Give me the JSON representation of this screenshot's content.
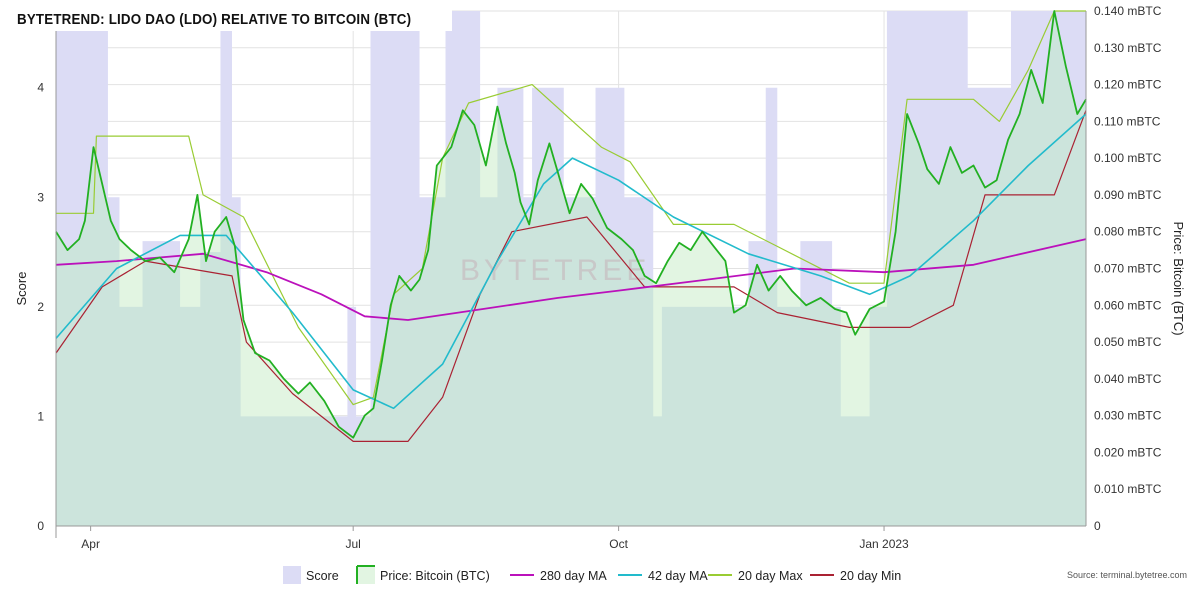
{
  "title": "BYTETREND: LIDO DAO (LDO) RELATIVE TO BITCOIN (BTC)",
  "watermark": "BYTETREE",
  "source": "Source: terminal.bytetree.com",
  "colors": {
    "score": "#dcdcf5",
    "price_fill": "#e2f5e2",
    "overlap": "#cce4dc",
    "price": "#22b022",
    "ma280": "#bb11bb",
    "ma42": "#22bbcc",
    "max20": "#99cc33",
    "min20": "#aa2233",
    "grid": "#e2e2e2"
  },
  "chart_data": {
    "type": "line",
    "title": "BYTETREND: LIDO DAO (LDO) RELATIVE TO BITCOIN (BTC)",
    "x_range": [
      "2022-03-20",
      "2023-03-12"
    ],
    "xticks": [
      {
        "label": "Apr",
        "date": "2022-04-01"
      },
      {
        "label": "Jul",
        "date": "2022-07-01"
      },
      {
        "label": "Oct",
        "date": "2022-10-01"
      },
      {
        "label": "Jan 2023",
        "date": "2023-01-01"
      }
    ],
    "left_axis": {
      "label": "Score",
      "ylim": [
        0,
        4.7
      ],
      "ticks": [
        "0",
        "1",
        "2",
        "3",
        "4"
      ]
    },
    "right_axis": {
      "label": "Price: Bitcoin (BTC)",
      "ylim": [
        0,
        0.14
      ],
      "ticks": [
        "0",
        "0.010 mBTC",
        "0.020 mBTC",
        "0.030 mBTC",
        "0.040 mBTC",
        "0.050 mBTC",
        "0.060 mBTC",
        "0.070 mBTC",
        "0.080 mBTC",
        "0.090 mBTC",
        "0.100 mBTC",
        "0.110 mBTC",
        "0.120 mBTC",
        "0.130 mBTC",
        "0.140 mBTC"
      ]
    },
    "legend": [
      "Score",
      "Price: Bitcoin (BTC)",
      "280 day MA",
      "42 day MA",
      "20 day Max",
      "20 day Min"
    ],
    "series": [
      {
        "name": "Score",
        "axis": "left",
        "type": "step-area",
        "points": [
          [
            "2022-03-20",
            4.7
          ],
          [
            "2022-03-31",
            4.7
          ],
          [
            "2022-04-07",
            3
          ],
          [
            "2022-04-11",
            2
          ],
          [
            "2022-04-19",
            2.6
          ],
          [
            "2022-05-02",
            2
          ],
          [
            "2022-05-09",
            2.5
          ],
          [
            "2022-05-16",
            4.7
          ],
          [
            "2022-05-20",
            3
          ],
          [
            "2022-05-23",
            1
          ],
          [
            "2022-06-29",
            2
          ],
          [
            "2022-07-02",
            1
          ],
          [
            "2022-07-07",
            4.7
          ],
          [
            "2022-07-24",
            3
          ],
          [
            "2022-08-02",
            4.7
          ],
          [
            "2022-08-14",
            3
          ],
          [
            "2022-08-20",
            4
          ],
          [
            "2022-08-29",
            3
          ],
          [
            "2022-09-01",
            4
          ],
          [
            "2022-09-12",
            3
          ],
          [
            "2022-09-23",
            4
          ],
          [
            "2022-10-03",
            3
          ],
          [
            "2022-10-13",
            1
          ],
          [
            "2022-10-16",
            2
          ],
          [
            "2022-11-15",
            2.6
          ],
          [
            "2022-11-21",
            4
          ],
          [
            "2022-11-25",
            2
          ],
          [
            "2022-12-03",
            2.6
          ],
          [
            "2022-12-14",
            2
          ],
          [
            "2022-12-17",
            1
          ],
          [
            "2022-12-27",
            2
          ],
          [
            "2023-01-02",
            4.7
          ],
          [
            "2023-01-30",
            4
          ],
          [
            "2023-02-14",
            4.7
          ],
          [
            "2023-03-12",
            4.7
          ]
        ]
      },
      {
        "name": "Price: Bitcoin (BTC)",
        "axis": "right",
        "points": [
          [
            "2022-03-20",
            0.08
          ],
          [
            "2022-03-24",
            0.075
          ],
          [
            "2022-03-28",
            0.078
          ],
          [
            "2022-03-30",
            0.083
          ],
          [
            "2022-04-02",
            0.103
          ],
          [
            "2022-04-05",
            0.093
          ],
          [
            "2022-04-08",
            0.083
          ],
          [
            "2022-04-11",
            0.078
          ],
          [
            "2022-04-15",
            0.075
          ],
          [
            "2022-04-20",
            0.072
          ],
          [
            "2022-04-25",
            0.073
          ],
          [
            "2022-04-30",
            0.069
          ],
          [
            "2022-05-05",
            0.078
          ],
          [
            "2022-05-08",
            0.09
          ],
          [
            "2022-05-11",
            0.072
          ],
          [
            "2022-05-14",
            0.08
          ],
          [
            "2022-05-18",
            0.084
          ],
          [
            "2022-05-21",
            0.076
          ],
          [
            "2022-05-24",
            0.056
          ],
          [
            "2022-05-28",
            0.047
          ],
          [
            "2022-06-02",
            0.045
          ],
          [
            "2022-06-07",
            0.04
          ],
          [
            "2022-06-12",
            0.036
          ],
          [
            "2022-06-16",
            0.039
          ],
          [
            "2022-06-21",
            0.034
          ],
          [
            "2022-06-26",
            0.027
          ],
          [
            "2022-07-01",
            0.024
          ],
          [
            "2022-07-05",
            0.03
          ],
          [
            "2022-07-08",
            0.032
          ],
          [
            "2022-07-11",
            0.045
          ],
          [
            "2022-07-14",
            0.06
          ],
          [
            "2022-07-17",
            0.068
          ],
          [
            "2022-07-21",
            0.064
          ],
          [
            "2022-07-24",
            0.067
          ],
          [
            "2022-07-27",
            0.075
          ],
          [
            "2022-07-30",
            0.098
          ],
          [
            "2022-08-04",
            0.103
          ],
          [
            "2022-08-08",
            0.113
          ],
          [
            "2022-08-12",
            0.109
          ],
          [
            "2022-08-16",
            0.098
          ],
          [
            "2022-08-20",
            0.114
          ],
          [
            "2022-08-23",
            0.104
          ],
          [
            "2022-08-26",
            0.096
          ],
          [
            "2022-08-28",
            0.088
          ],
          [
            "2022-08-31",
            0.082
          ],
          [
            "2022-09-03",
            0.094
          ],
          [
            "2022-09-07",
            0.104
          ],
          [
            "2022-09-10",
            0.096
          ],
          [
            "2022-09-14",
            0.085
          ],
          [
            "2022-09-18",
            0.093
          ],
          [
            "2022-09-22",
            0.089
          ],
          [
            "2022-09-27",
            0.081
          ],
          [
            "2022-10-02",
            0.078
          ],
          [
            "2022-10-06",
            0.075
          ],
          [
            "2022-10-10",
            0.068
          ],
          [
            "2022-10-14",
            0.066
          ],
          [
            "2022-10-18",
            0.072
          ],
          [
            "2022-10-22",
            0.077
          ],
          [
            "2022-10-26",
            0.075
          ],
          [
            "2022-10-30",
            0.08
          ],
          [
            "2022-11-03",
            0.076
          ],
          [
            "2022-11-07",
            0.072
          ],
          [
            "2022-11-10",
            0.058
          ],
          [
            "2022-11-14",
            0.06
          ],
          [
            "2022-11-18",
            0.071
          ],
          [
            "2022-11-22",
            0.064
          ],
          [
            "2022-11-26",
            0.068
          ],
          [
            "2022-11-30",
            0.064
          ],
          [
            "2022-12-05",
            0.06
          ],
          [
            "2022-12-10",
            0.062
          ],
          [
            "2022-12-15",
            0.059
          ],
          [
            "2022-12-19",
            0.058
          ],
          [
            "2022-12-22",
            0.052
          ],
          [
            "2022-12-27",
            0.059
          ],
          [
            "2023-01-01",
            0.061
          ],
          [
            "2023-01-05",
            0.08
          ],
          [
            "2023-01-09",
            0.112
          ],
          [
            "2023-01-13",
            0.104
          ],
          [
            "2023-01-16",
            0.097
          ],
          [
            "2023-01-20",
            0.093
          ],
          [
            "2023-01-24",
            0.103
          ],
          [
            "2023-01-28",
            0.096
          ],
          [
            "2023-02-01",
            0.098
          ],
          [
            "2023-02-05",
            0.092
          ],
          [
            "2023-02-09",
            0.094
          ],
          [
            "2023-02-13",
            0.105
          ],
          [
            "2023-02-17",
            0.112
          ],
          [
            "2023-02-21",
            0.124
          ],
          [
            "2023-02-25",
            0.115
          ],
          [
            "2023-03-01",
            0.14
          ],
          [
            "2023-03-05",
            0.125
          ],
          [
            "2023-03-09",
            0.112
          ],
          [
            "2023-03-12",
            0.116
          ]
        ]
      },
      {
        "name": "280 day MA",
        "axis": "right",
        "points": [
          [
            "2022-03-20",
            0.071
          ],
          [
            "2022-04-10",
            0.072
          ],
          [
            "2022-05-10",
            0.074
          ],
          [
            "2022-06-01",
            0.069
          ],
          [
            "2022-06-20",
            0.063
          ],
          [
            "2022-07-05",
            0.057
          ],
          [
            "2022-07-20",
            0.056
          ],
          [
            "2022-08-15",
            0.059
          ],
          [
            "2022-09-10",
            0.062
          ],
          [
            "2022-10-01",
            0.064
          ],
          [
            "2022-11-01",
            0.067
          ],
          [
            "2022-12-01",
            0.07
          ],
          [
            "2023-01-01",
            0.069
          ],
          [
            "2023-02-01",
            0.071
          ],
          [
            "2023-03-12",
            0.078
          ]
        ]
      },
      {
        "name": "42 day MA",
        "axis": "right",
        "points": [
          [
            "2022-03-20",
            0.051
          ],
          [
            "2022-04-10",
            0.07
          ],
          [
            "2022-05-02",
            0.079
          ],
          [
            "2022-05-18",
            0.079
          ],
          [
            "2022-06-10",
            0.058
          ],
          [
            "2022-07-01",
            0.037
          ],
          [
            "2022-07-15",
            0.032
          ],
          [
            "2022-08-01",
            0.044
          ],
          [
            "2022-08-20",
            0.072
          ],
          [
            "2022-09-05",
            0.093
          ],
          [
            "2022-09-15",
            0.1
          ],
          [
            "2022-10-01",
            0.094
          ],
          [
            "2022-10-20",
            0.084
          ],
          [
            "2022-11-15",
            0.074
          ],
          [
            "2022-12-10",
            0.068
          ],
          [
            "2022-12-27",
            0.063
          ],
          [
            "2023-01-10",
            0.068
          ],
          [
            "2023-02-01",
            0.083
          ],
          [
            "2023-02-20",
            0.098
          ],
          [
            "2023-03-12",
            0.112
          ]
        ]
      },
      {
        "name": "20 day Max",
        "axis": "right",
        "points": [
          [
            "2022-03-20",
            0.085
          ],
          [
            "2022-04-02",
            0.085
          ],
          [
            "2022-04-03",
            0.106
          ],
          [
            "2022-05-05",
            0.106
          ],
          [
            "2022-05-10",
            0.09
          ],
          [
            "2022-05-24",
            0.084
          ],
          [
            "2022-06-12",
            0.054
          ],
          [
            "2022-07-01",
            0.033
          ],
          [
            "2022-07-08",
            0.035
          ],
          [
            "2022-07-15",
            0.063
          ],
          [
            "2022-07-25",
            0.07
          ],
          [
            "2022-08-01",
            0.1
          ],
          [
            "2022-08-10",
            0.115
          ],
          [
            "2022-09-01",
            0.12
          ],
          [
            "2022-09-25",
            0.103
          ],
          [
            "2022-10-05",
            0.099
          ],
          [
            "2022-10-20",
            0.082
          ],
          [
            "2022-11-10",
            0.082
          ],
          [
            "2022-11-25",
            0.076
          ],
          [
            "2022-12-20",
            0.066
          ],
          [
            "2023-01-01",
            0.066
          ],
          [
            "2023-01-09",
            0.116
          ],
          [
            "2023-02-01",
            0.116
          ],
          [
            "2023-02-10",
            0.11
          ],
          [
            "2023-02-20",
            0.124
          ],
          [
            "2023-03-01",
            0.14
          ],
          [
            "2023-03-12",
            0.14
          ]
        ]
      },
      {
        "name": "20 day Min",
        "axis": "right",
        "points": [
          [
            "2022-03-20",
            0.047
          ],
          [
            "2022-04-05",
            0.065
          ],
          [
            "2022-04-20",
            0.072
          ],
          [
            "2022-05-20",
            0.068
          ],
          [
            "2022-05-25",
            0.05
          ],
          [
            "2022-06-10",
            0.036
          ],
          [
            "2022-07-01",
            0.023
          ],
          [
            "2022-07-20",
            0.023
          ],
          [
            "2022-08-01",
            0.035
          ],
          [
            "2022-08-14",
            0.063
          ],
          [
            "2022-08-25",
            0.08
          ],
          [
            "2022-09-20",
            0.084
          ],
          [
            "2022-10-10",
            0.065
          ],
          [
            "2022-11-10",
            0.065
          ],
          [
            "2022-11-25",
            0.058
          ],
          [
            "2022-12-20",
            0.054
          ],
          [
            "2023-01-10",
            0.054
          ],
          [
            "2023-01-25",
            0.06
          ],
          [
            "2023-02-05",
            0.09
          ],
          [
            "2023-03-01",
            0.09
          ],
          [
            "2023-03-12",
            0.113
          ]
        ]
      }
    ]
  }
}
